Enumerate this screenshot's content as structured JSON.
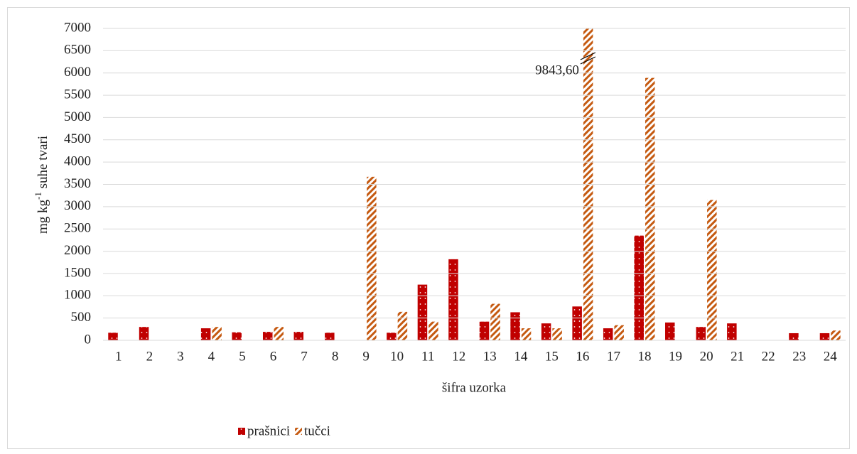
{
  "chart_data": {
    "type": "bar",
    "ylabel": "mg kg",
    "ylabel_superscript": "-1",
    "ylabel_rest": "suhe tvari",
    "xlabel": "šifra uzorka",
    "categories": [
      "1",
      "2",
      "3",
      "4",
      "5",
      "6",
      "7",
      "8",
      "9",
      "10",
      "11",
      "12",
      "13",
      "14",
      "15",
      "16",
      "17",
      "18",
      "19",
      "20",
      "21",
      "22",
      "23",
      "24"
    ],
    "series": [
      {
        "name": "prašnici",
        "color": "#c00000",
        "values": [
          170,
          300,
          0,
          270,
          180,
          190,
          190,
          170,
          0,
          170,
          1250,
          1820,
          420,
          630,
          380,
          760,
          270,
          2350,
          400,
          300,
          380,
          0,
          160,
          160
        ]
      },
      {
        "name": "tučci",
        "color": "#c55a11",
        "values": [
          0,
          0,
          0,
          300,
          0,
          300,
          0,
          0,
          3670,
          640,
          420,
          0,
          820,
          270,
          270,
          9843.6,
          340,
          5890,
          0,
          3150,
          0,
          0,
          0,
          220
        ],
        "value_labels": [
          null,
          null,
          null,
          null,
          null,
          null,
          null,
          null,
          null,
          null,
          null,
          null,
          null,
          null,
          null,
          "9843,60",
          null,
          null,
          null,
          null,
          null,
          null,
          null,
          null
        ]
      }
    ],
    "ylim": [
      0,
      7000
    ],
    "yticks": [
      0,
      500,
      1000,
      1500,
      2000,
      2500,
      3000,
      3500,
      4000,
      4500,
      5000,
      5500,
      6000,
      6500,
      7000
    ],
    "grid": true,
    "legend": "bottom"
  }
}
